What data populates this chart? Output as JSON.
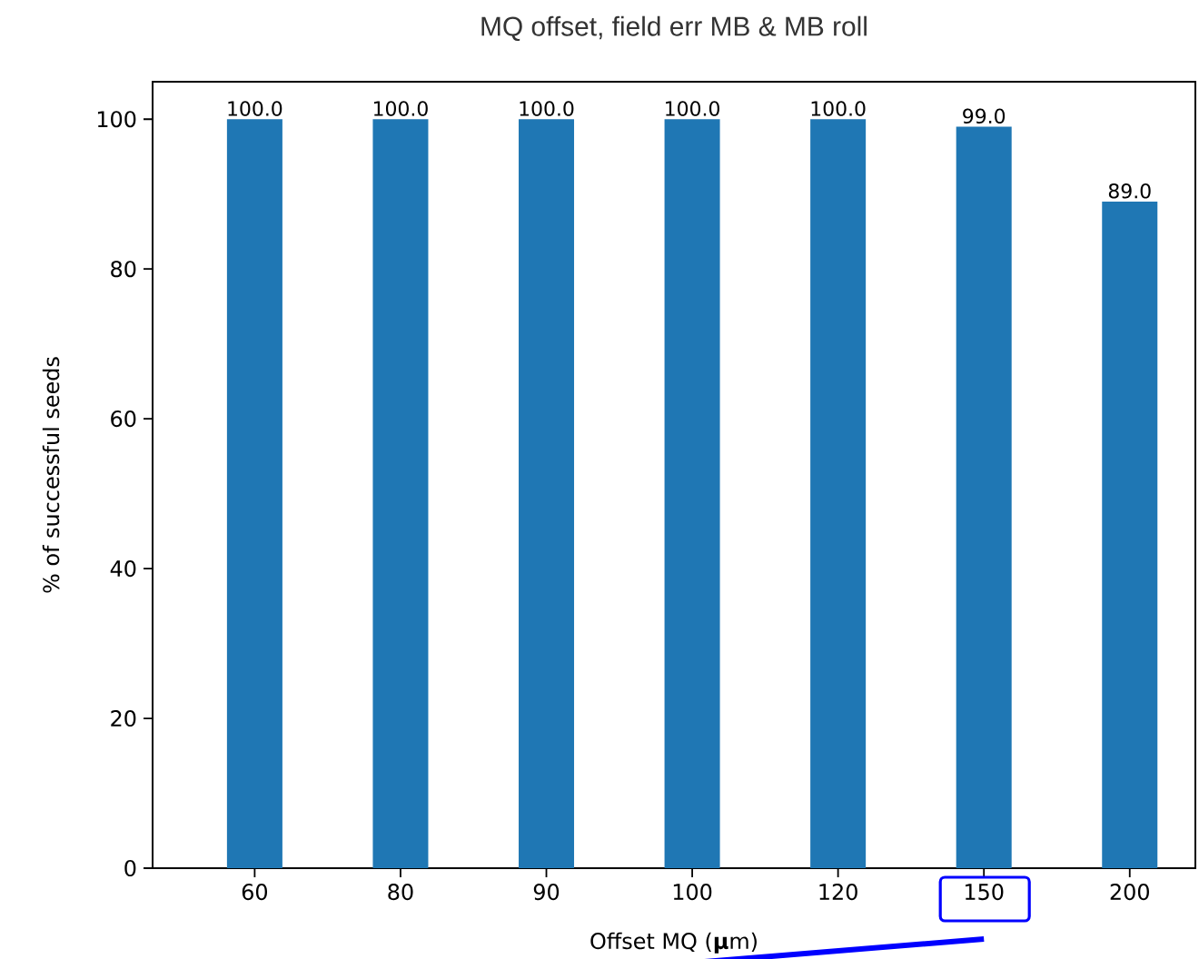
{
  "chart_data": {
    "type": "bar",
    "title": "MQ offset, field err MB & MB roll",
    "xlabel": "Offset MQ (**µ**m)",
    "ylabel": "% of successful seeds",
    "categories": [
      "60",
      "80",
      "90",
      "100",
      "120",
      "150",
      "200"
    ],
    "values": [
      100,
      100,
      100,
      100,
      100,
      99,
      89
    ],
    "value_labels": [
      "100.0",
      "100.0",
      "100.0",
      "100.0",
      "100.0",
      "99.0",
      "89.0"
    ],
    "color": "#1f77b4",
    "ylim": [
      0,
      105
    ],
    "yticks": [
      0,
      20,
      40,
      60,
      80,
      100
    ],
    "grid": false
  }
}
